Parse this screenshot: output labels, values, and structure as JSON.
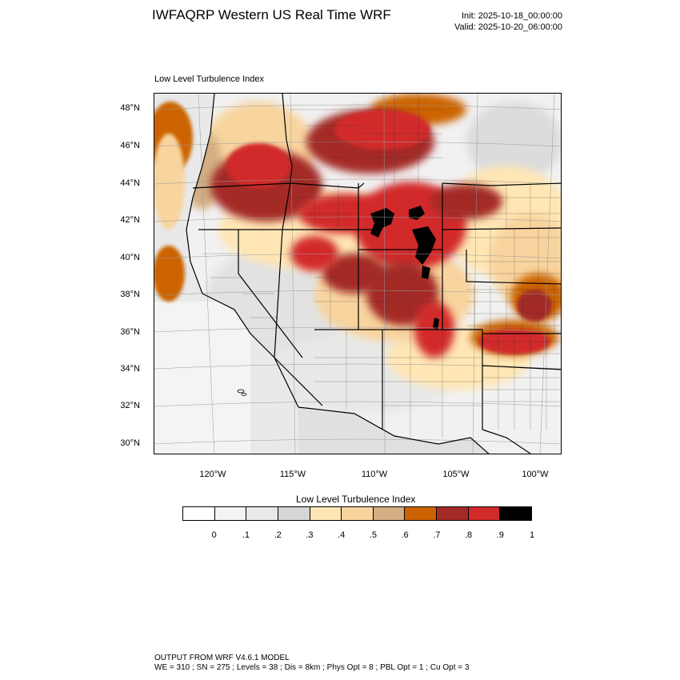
{
  "header": {
    "title": "IWFAQRP Western US Real Time WRF",
    "init": "Init: 2025-10-18_00:00:00",
    "valid": "Valid: 2025-10-20_06:00:00"
  },
  "map": {
    "subtitle": "Low Level Turbulence Index",
    "lat_labels": [
      "48°N",
      "46°N",
      "44°N",
      "42°N",
      "40°N",
      "38°N",
      "36°N",
      "34°N",
      "32°N",
      "30°N"
    ],
    "lon_labels": [
      "120°W",
      "115°W",
      "110°W",
      "105°W",
      "100°W"
    ],
    "high_index_areas": [
      "central Oregon",
      "Idaho",
      "western Montana",
      "Wyoming",
      "northern Colorado",
      "Utah",
      "New Mexico",
      "northern Arizona",
      "western Nebraska",
      "Kansas",
      "Oklahoma"
    ]
  },
  "colorbar": {
    "title": "Low Level Turbulence Index",
    "tick_labels": [
      "0",
      ".1",
      ".2",
      ".3",
      ".4",
      ".5",
      ".6",
      ".7",
      ".8",
      ".9",
      "1"
    ],
    "colors": [
      "#ffffff",
      "#f4f4f4",
      "#e9e9e9",
      "#d6d6d6",
      "#ffe6b4",
      "#f8d49e",
      "#d3ae82",
      "#cc6300",
      "#a42a26",
      "#d22a2a",
      "#000000"
    ]
  },
  "footer": {
    "line1": "OUTPUT FROM WRF V4.6.1 MODEL",
    "line2": "WE = 310 ; SN = 275 ; Levels = 38 ; Dis = 8km ; Phys Opt = 8 ; PBL Opt = 1 ; Cu Opt = 3"
  }
}
